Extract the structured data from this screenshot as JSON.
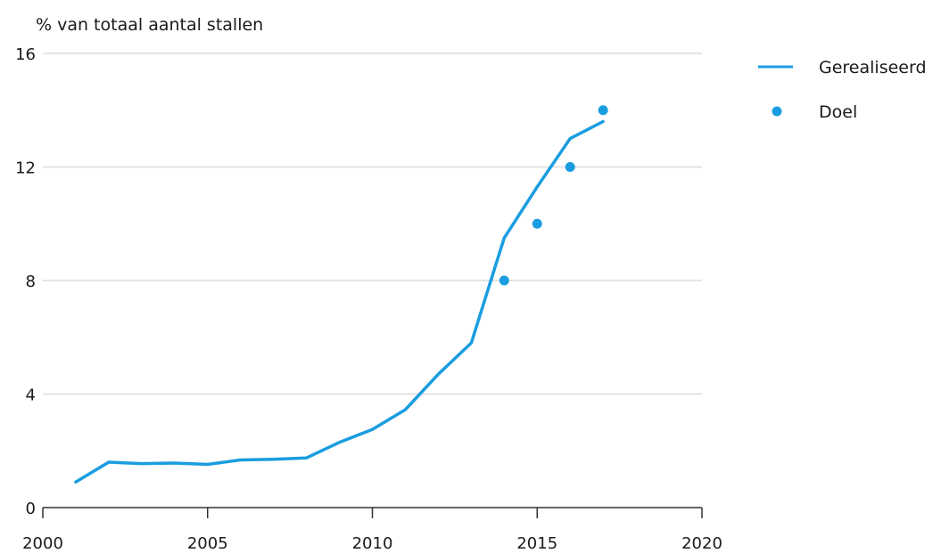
{
  "colors": {
    "series": "#1a9de0",
    "gridline": "#dcdcdc",
    "axis": "#333333"
  },
  "chart_data": {
    "type": "line",
    "title": "",
    "ylabel": "% van totaal aantal stallen",
    "xlabel": "",
    "xlim": [
      2000,
      2020
    ],
    "ylim": [
      0,
      16
    ],
    "x_ticks": [
      2000,
      2005,
      2010,
      2015,
      2020
    ],
    "y_ticks": [
      0,
      4,
      8,
      12,
      16
    ],
    "grid": "horizontal",
    "legend_position": "top-right",
    "series": [
      {
        "name": "Gerealiseerd",
        "kind": "line",
        "x": [
          2001,
          2002,
          2003,
          2004,
          2005,
          2006,
          2007,
          2008,
          2009,
          2010,
          2011,
          2012,
          2013,
          2014,
          2015,
          2016,
          2017
        ],
        "y": [
          0.9,
          1.6,
          1.55,
          1.57,
          1.52,
          1.68,
          1.7,
          1.75,
          2.3,
          2.75,
          3.45,
          4.7,
          5.8,
          9.5,
          11.3,
          13.0,
          13.6
        ]
      },
      {
        "name": "Doel",
        "kind": "points",
        "x": [
          2014,
          2015,
          2016,
          2017
        ],
        "y": [
          8,
          10,
          12,
          14
        ]
      }
    ]
  }
}
